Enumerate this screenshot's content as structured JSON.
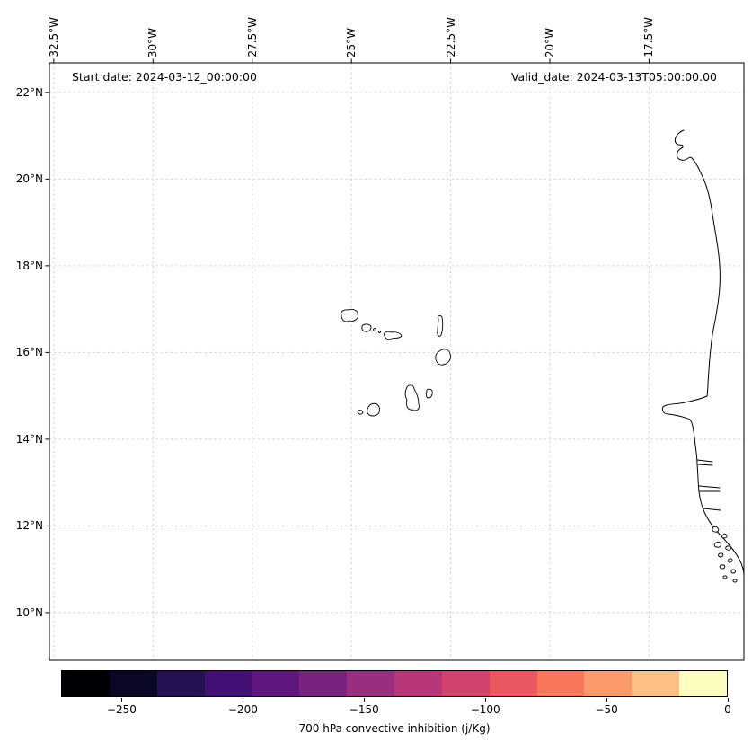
{
  "annotations": {
    "start_date": "Start date: 2024-03-12_00:00:00",
    "valid_date": "Valid_date: 2024-03-13T05:00:00.00"
  },
  "axes": {
    "lon_ticks": [
      {
        "value": -32.5,
        "label": "32.5°W"
      },
      {
        "value": -30.0,
        "label": "30°W"
      },
      {
        "value": -27.5,
        "label": "27.5°W"
      },
      {
        "value": -25.0,
        "label": "25°W"
      },
      {
        "value": -22.5,
        "label": "22.5°W"
      },
      {
        "value": -20.0,
        "label": "20°W"
      },
      {
        "value": -17.5,
        "label": "17.5°W"
      }
    ],
    "lat_ticks": [
      {
        "value": 22,
        "label": "22°N"
      },
      {
        "value": 20,
        "label": "20°N"
      },
      {
        "value": 18,
        "label": "18°N"
      },
      {
        "value": 16,
        "label": "16°N"
      },
      {
        "value": 14,
        "label": "14°N"
      },
      {
        "value": 12,
        "label": "12°N"
      },
      {
        "value": 10,
        "label": "10°N"
      }
    ]
  },
  "colorbar": {
    "label": "700 hPa convective inhibition (j/Kg)",
    "range": [
      -275,
      0
    ],
    "ticks": [
      {
        "value": -250,
        "label": "−250"
      },
      {
        "value": -200,
        "label": "−200"
      },
      {
        "value": -150,
        "label": "−150"
      },
      {
        "value": -100,
        "label": "−100"
      },
      {
        "value": -50,
        "label": "−50"
      },
      {
        "value": 0,
        "label": "0"
      }
    ],
    "colors": [
      "#000004",
      "#0b0726",
      "#241253",
      "#420f75",
      "#5e177f",
      "#7b2281",
      "#992d7f",
      "#b73779",
      "#d3426d",
      "#eb5760",
      "#f87659",
      "#fd9a69",
      "#febf84",
      "#fcfdbf"
    ]
  },
  "colors": {
    "grid": "#ddc6c6",
    "coastline": "#000000",
    "background": "#ffffff"
  }
}
